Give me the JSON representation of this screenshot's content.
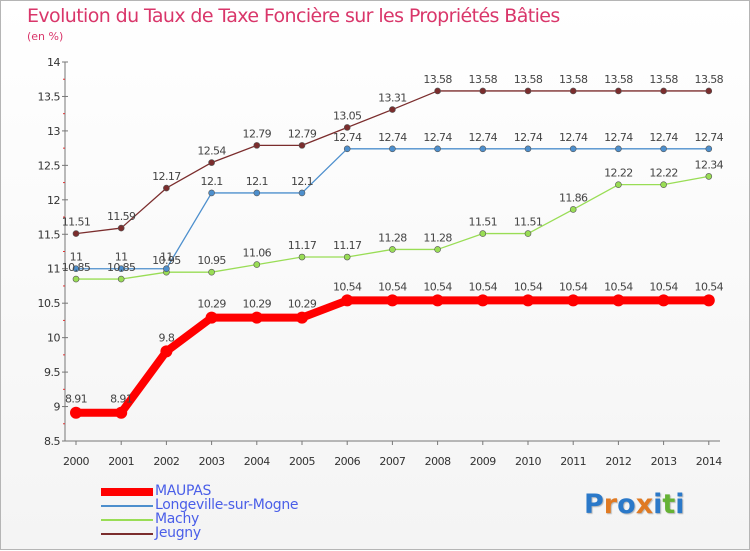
{
  "title": "Evolution du Taux de Taxe Foncière sur les Propriétés Bâties",
  "unit_label": "(en %)",
  "logo": {
    "letters": [
      "P",
      "r",
      "o",
      "x",
      "i",
      "t",
      "i"
    ],
    "colors": [
      "#2b79c9",
      "#e07a23",
      "#2b79c9",
      "#e07a23",
      "#2b79c9",
      "#66b235",
      "#2b79c9"
    ]
  },
  "chart_data": {
    "type": "line",
    "x": [
      "2000",
      "2001",
      "2002",
      "2003",
      "2004",
      "2005",
      "2006",
      "2007",
      "2008",
      "2009",
      "2010",
      "2011",
      "2012",
      "2013",
      "2014"
    ],
    "ylim": [
      8.5,
      14
    ],
    "yticks": [
      "8.5",
      "9",
      "9.5",
      "10",
      "10.5",
      "11",
      "11.5",
      "12",
      "12.5",
      "13",
      "13.5",
      "14"
    ],
    "grid": false,
    "legend_position": "bottom-left",
    "series": [
      {
        "name": "MAUPAS",
        "color": "#ff0000",
        "emphasis": true,
        "values": [
          8.91,
          8.91,
          9.8,
          10.29,
          10.29,
          10.29,
          10.54,
          10.54,
          10.54,
          10.54,
          10.54,
          10.54,
          10.54,
          10.54,
          10.54
        ],
        "labels": [
          "8.91",
          "8.91",
          "9.8",
          "10.29",
          "10.29",
          "10.29",
          "10.54",
          "10.54",
          "10.54",
          "10.54",
          "10.54",
          "10.54",
          "10.54",
          "10.54",
          "10.54"
        ]
      },
      {
        "name": "Longeville-sur-Mogne",
        "color": "#4d8fcd",
        "values": [
          11,
          11,
          11,
          12.1,
          12.1,
          12.1,
          12.74,
          12.74,
          12.74,
          12.74,
          12.74,
          12.74,
          12.74,
          12.74,
          12.74
        ],
        "labels": [
          "11",
          "11",
          "11",
          "12.1",
          "12.1",
          "12.1",
          "12.74",
          "12.74",
          "12.74",
          "12.74",
          "12.74",
          "12.74",
          "12.74",
          "12.74",
          "12.74"
        ]
      },
      {
        "name": "Machy",
        "color": "#99dd55",
        "values": [
          10.85,
          10.85,
          10.95,
          10.95,
          11.06,
          11.17,
          11.17,
          11.28,
          11.28,
          11.51,
          11.51,
          11.86,
          12.22,
          12.22,
          12.34
        ],
        "labels": [
          "10.85",
          "10.85",
          "10.95",
          "10.95",
          "11.06",
          "11.17",
          "11.17",
          "11.28",
          "11.28",
          "11.51",
          "11.51",
          "11.86",
          "12.22",
          "12.22",
          "12.34"
        ]
      },
      {
        "name": "Jeugny",
        "color": "#7b2d2d",
        "values": [
          11.51,
          11.59,
          12.17,
          12.54,
          12.79,
          12.79,
          13.05,
          13.31,
          13.58,
          13.58,
          13.58,
          13.58,
          13.58,
          13.58,
          13.58
        ],
        "labels": [
          "11.51",
          "11.59",
          "12.17",
          "12.54",
          "12.79",
          "12.79",
          "13.05",
          "13.31",
          "13.58",
          "13.58",
          "13.58",
          "13.58",
          "13.58",
          "13.58",
          "13.58"
        ]
      }
    ]
  }
}
